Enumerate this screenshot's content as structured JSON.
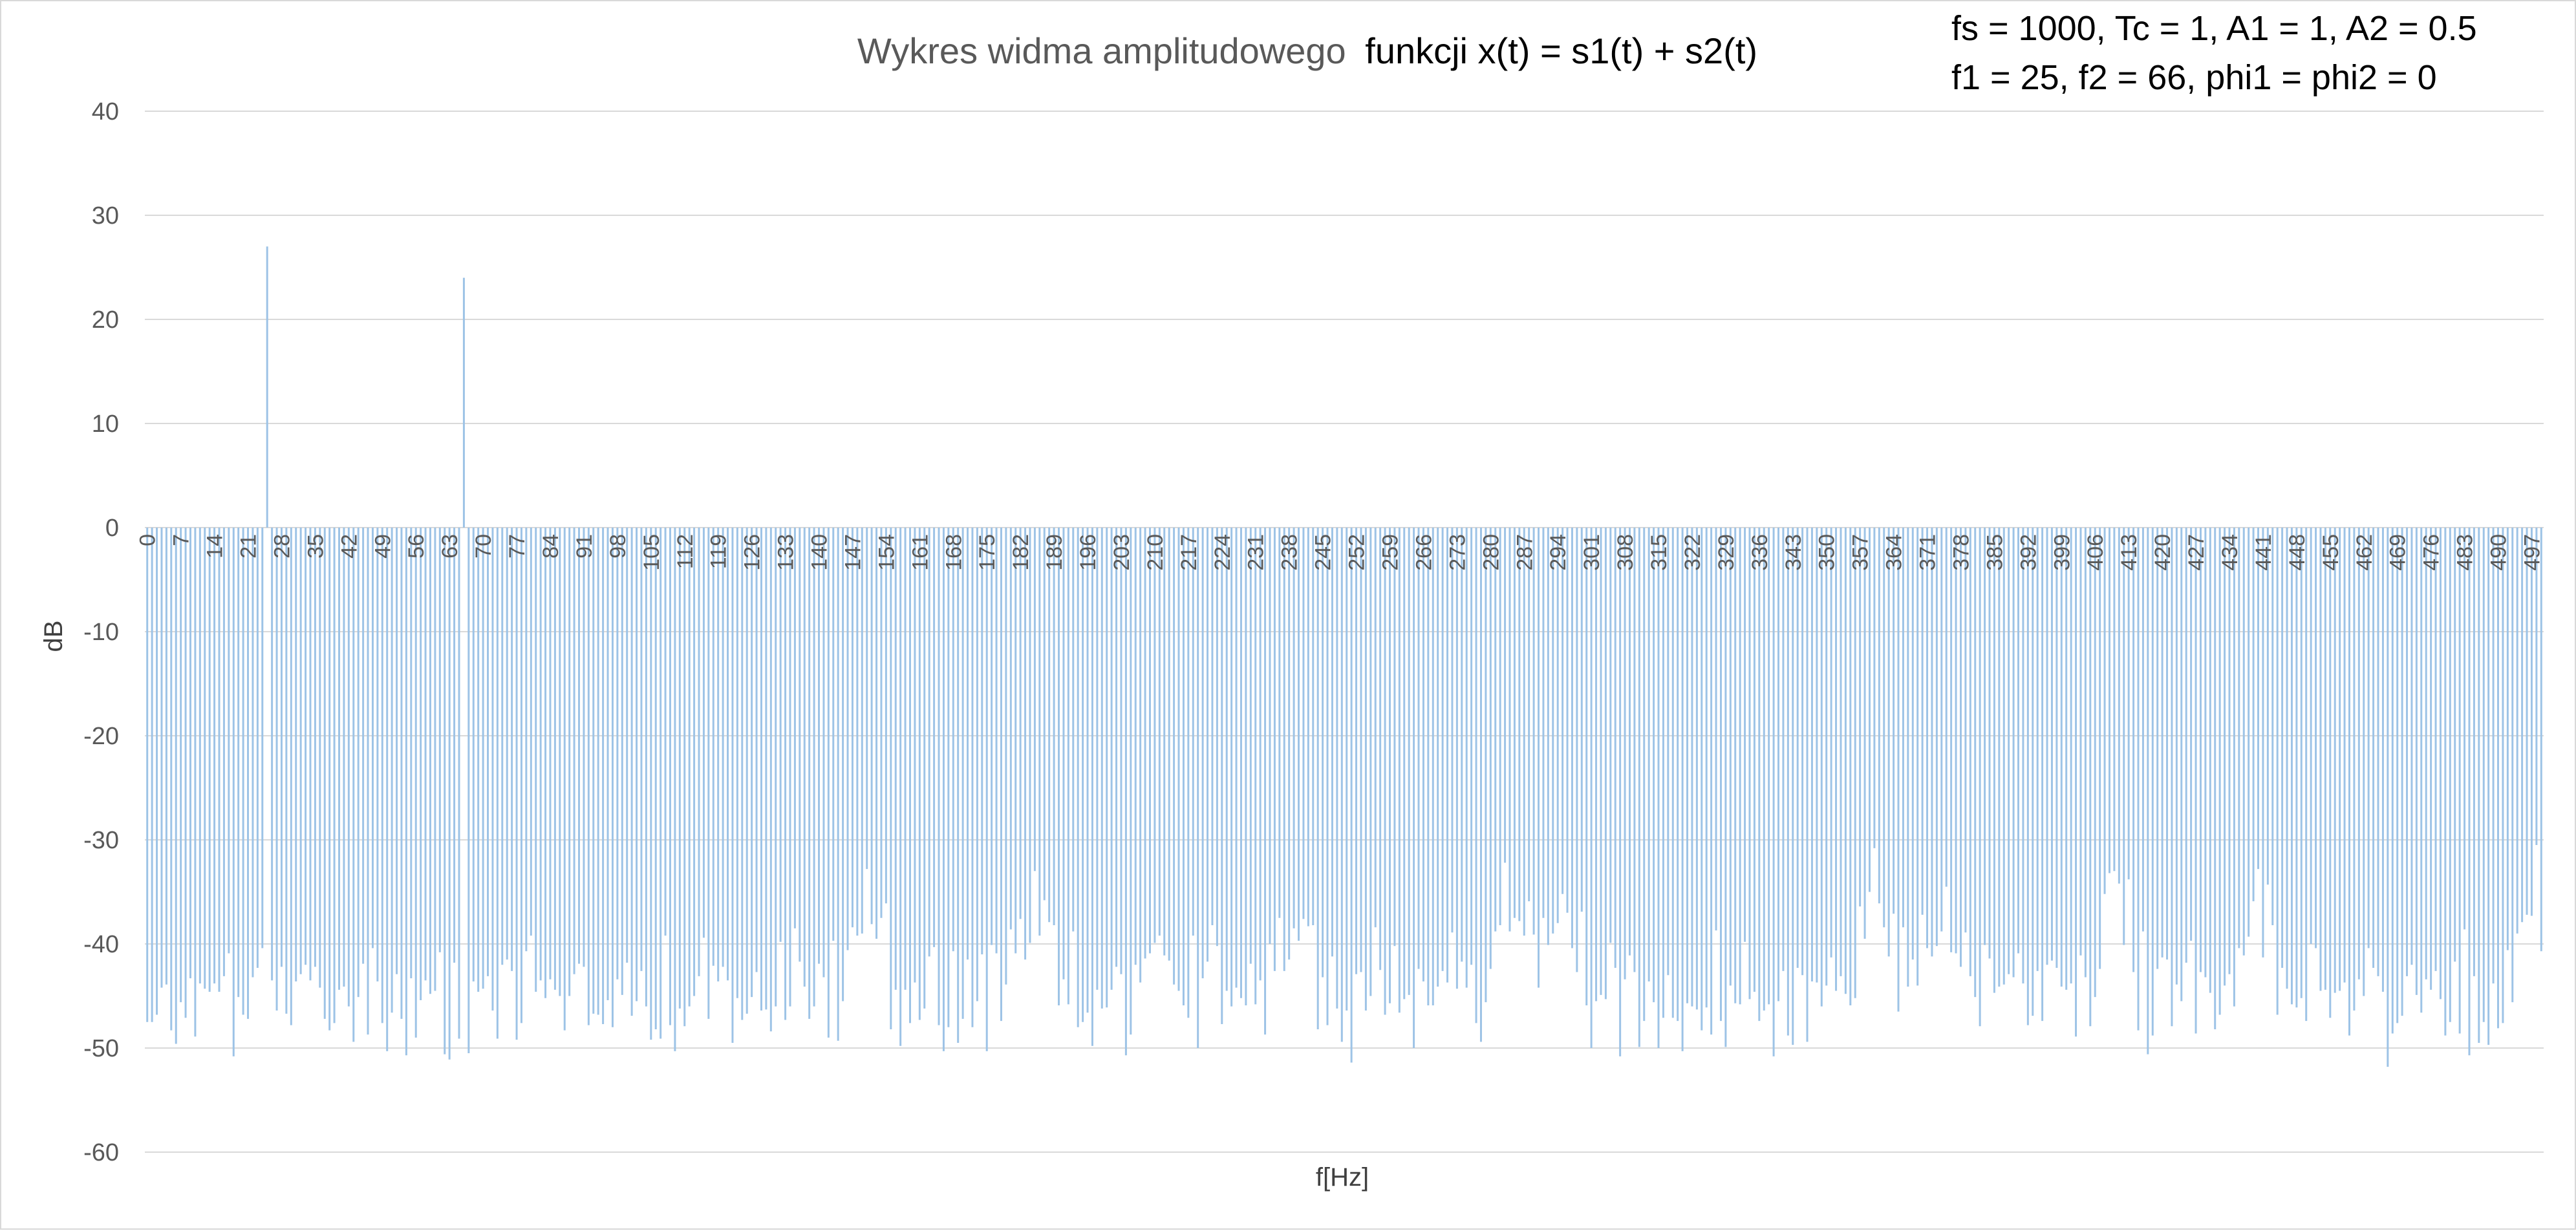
{
  "chart_data": {
    "type": "bar",
    "title": "Wykres widma amplitudowego funkcji x(t) = s1(t) + s2(t)",
    "title_parts": [
      "Wykres widma amplitudowego",
      "funkcji x(t) = s1(t) + s2(t)"
    ],
    "annotation_lines": [
      "fs = 1000, Tc = 1, A1 = 1, A2 = 0.5",
      "f1 = 25, f2 = 66, phi1 = phi2 = 0"
    ],
    "xlabel": "f[Hz]",
    "ylabel": "dB",
    "ylim": [
      -60,
      40
    ],
    "yticks": [
      40,
      30,
      20,
      10,
      0,
      -10,
      -20,
      -30,
      -40,
      -50,
      -60
    ],
    "x_range": [
      0,
      499
    ],
    "x_tick_step": 7,
    "bar_color": "#9dc3e6",
    "grid": true,
    "legend": "none",
    "peaks": [
      {
        "x": 25,
        "y": 27
      },
      {
        "x": 66,
        "y": 24
      }
    ],
    "noise_floor_db": -45
  }
}
